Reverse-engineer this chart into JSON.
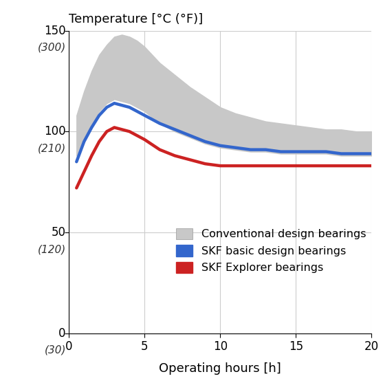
{
  "title": "Temperature [°C (°F)]",
  "xlabel": "Operating hours [h]",
  "xlim": [
    0,
    20
  ],
  "ylim": [
    0,
    150
  ],
  "yticks": [
    0,
    50,
    100,
    150
  ],
  "ytick_labels_normal": [
    "0",
    "50",
    "100",
    "150"
  ],
  "ytick_labels_italic": [
    "(30)",
    "(120)",
    "(210)",
    "(300)"
  ],
  "xticks": [
    0,
    5,
    10,
    15,
    20
  ],
  "background_color": "#ffffff",
  "grid_color": "#cccccc",
  "skf_basic_color": "#3366cc",
  "skf_explorer_color": "#cc2222",
  "conventional_fill_color": "#c8c8c8",
  "legend_labels": [
    "Conventional design bearings",
    "SKF basic design bearings",
    "SKF Explorer bearings"
  ],
  "x_skf_basic": [
    0.5,
    1.0,
    1.5,
    2.0,
    2.5,
    3.0,
    3.5,
    4.0,
    4.5,
    5.0,
    6.0,
    7.0,
    8.0,
    9.0,
    10.0,
    11.0,
    12.0,
    13.0,
    14.0,
    15.0,
    16.0,
    17.0,
    18.0,
    19.0,
    20.0
  ],
  "y_skf_basic": [
    85,
    95,
    102,
    108,
    112,
    114,
    113,
    112,
    110,
    108,
    104,
    101,
    98,
    95,
    93,
    92,
    91,
    91,
    90,
    90,
    90,
    90,
    89,
    89,
    89
  ],
  "x_skf_explorer": [
    0.5,
    1.0,
    1.5,
    2.0,
    2.5,
    3.0,
    3.5,
    4.0,
    4.5,
    5.0,
    6.0,
    7.0,
    8.0,
    9.0,
    10.0,
    11.0,
    12.0,
    13.0,
    14.0,
    15.0,
    16.0,
    17.0,
    18.0,
    19.0,
    20.0
  ],
  "y_skf_explorer": [
    72,
    80,
    88,
    95,
    100,
    102,
    101,
    100,
    98,
    96,
    91,
    88,
    86,
    84,
    83,
    83,
    83,
    83,
    83,
    83,
    83,
    83,
    83,
    83,
    83
  ],
  "x_conv": [
    0.5,
    1.0,
    1.5,
    2.0,
    2.5,
    3.0,
    3.5,
    4.0,
    4.5,
    5.0,
    5.5,
    6.0,
    7.0,
    8.0,
    9.0,
    10.0,
    11.0,
    12.0,
    13.0,
    14.0,
    15.0,
    16.0,
    17.0,
    18.0,
    19.0,
    20.0
  ],
  "y_conv_upper": [
    108,
    120,
    130,
    138,
    143,
    147,
    148,
    147,
    145,
    142,
    138,
    134,
    128,
    122,
    117,
    112,
    109,
    107,
    105,
    104,
    103,
    102,
    101,
    101,
    100,
    100
  ],
  "y_conv_lower": [
    88,
    96,
    104,
    110,
    114,
    116,
    115,
    114,
    112,
    110,
    107,
    104,
    100,
    97,
    94,
    92,
    91,
    90,
    90,
    89,
    89,
    89,
    89,
    88,
    88,
    88
  ]
}
